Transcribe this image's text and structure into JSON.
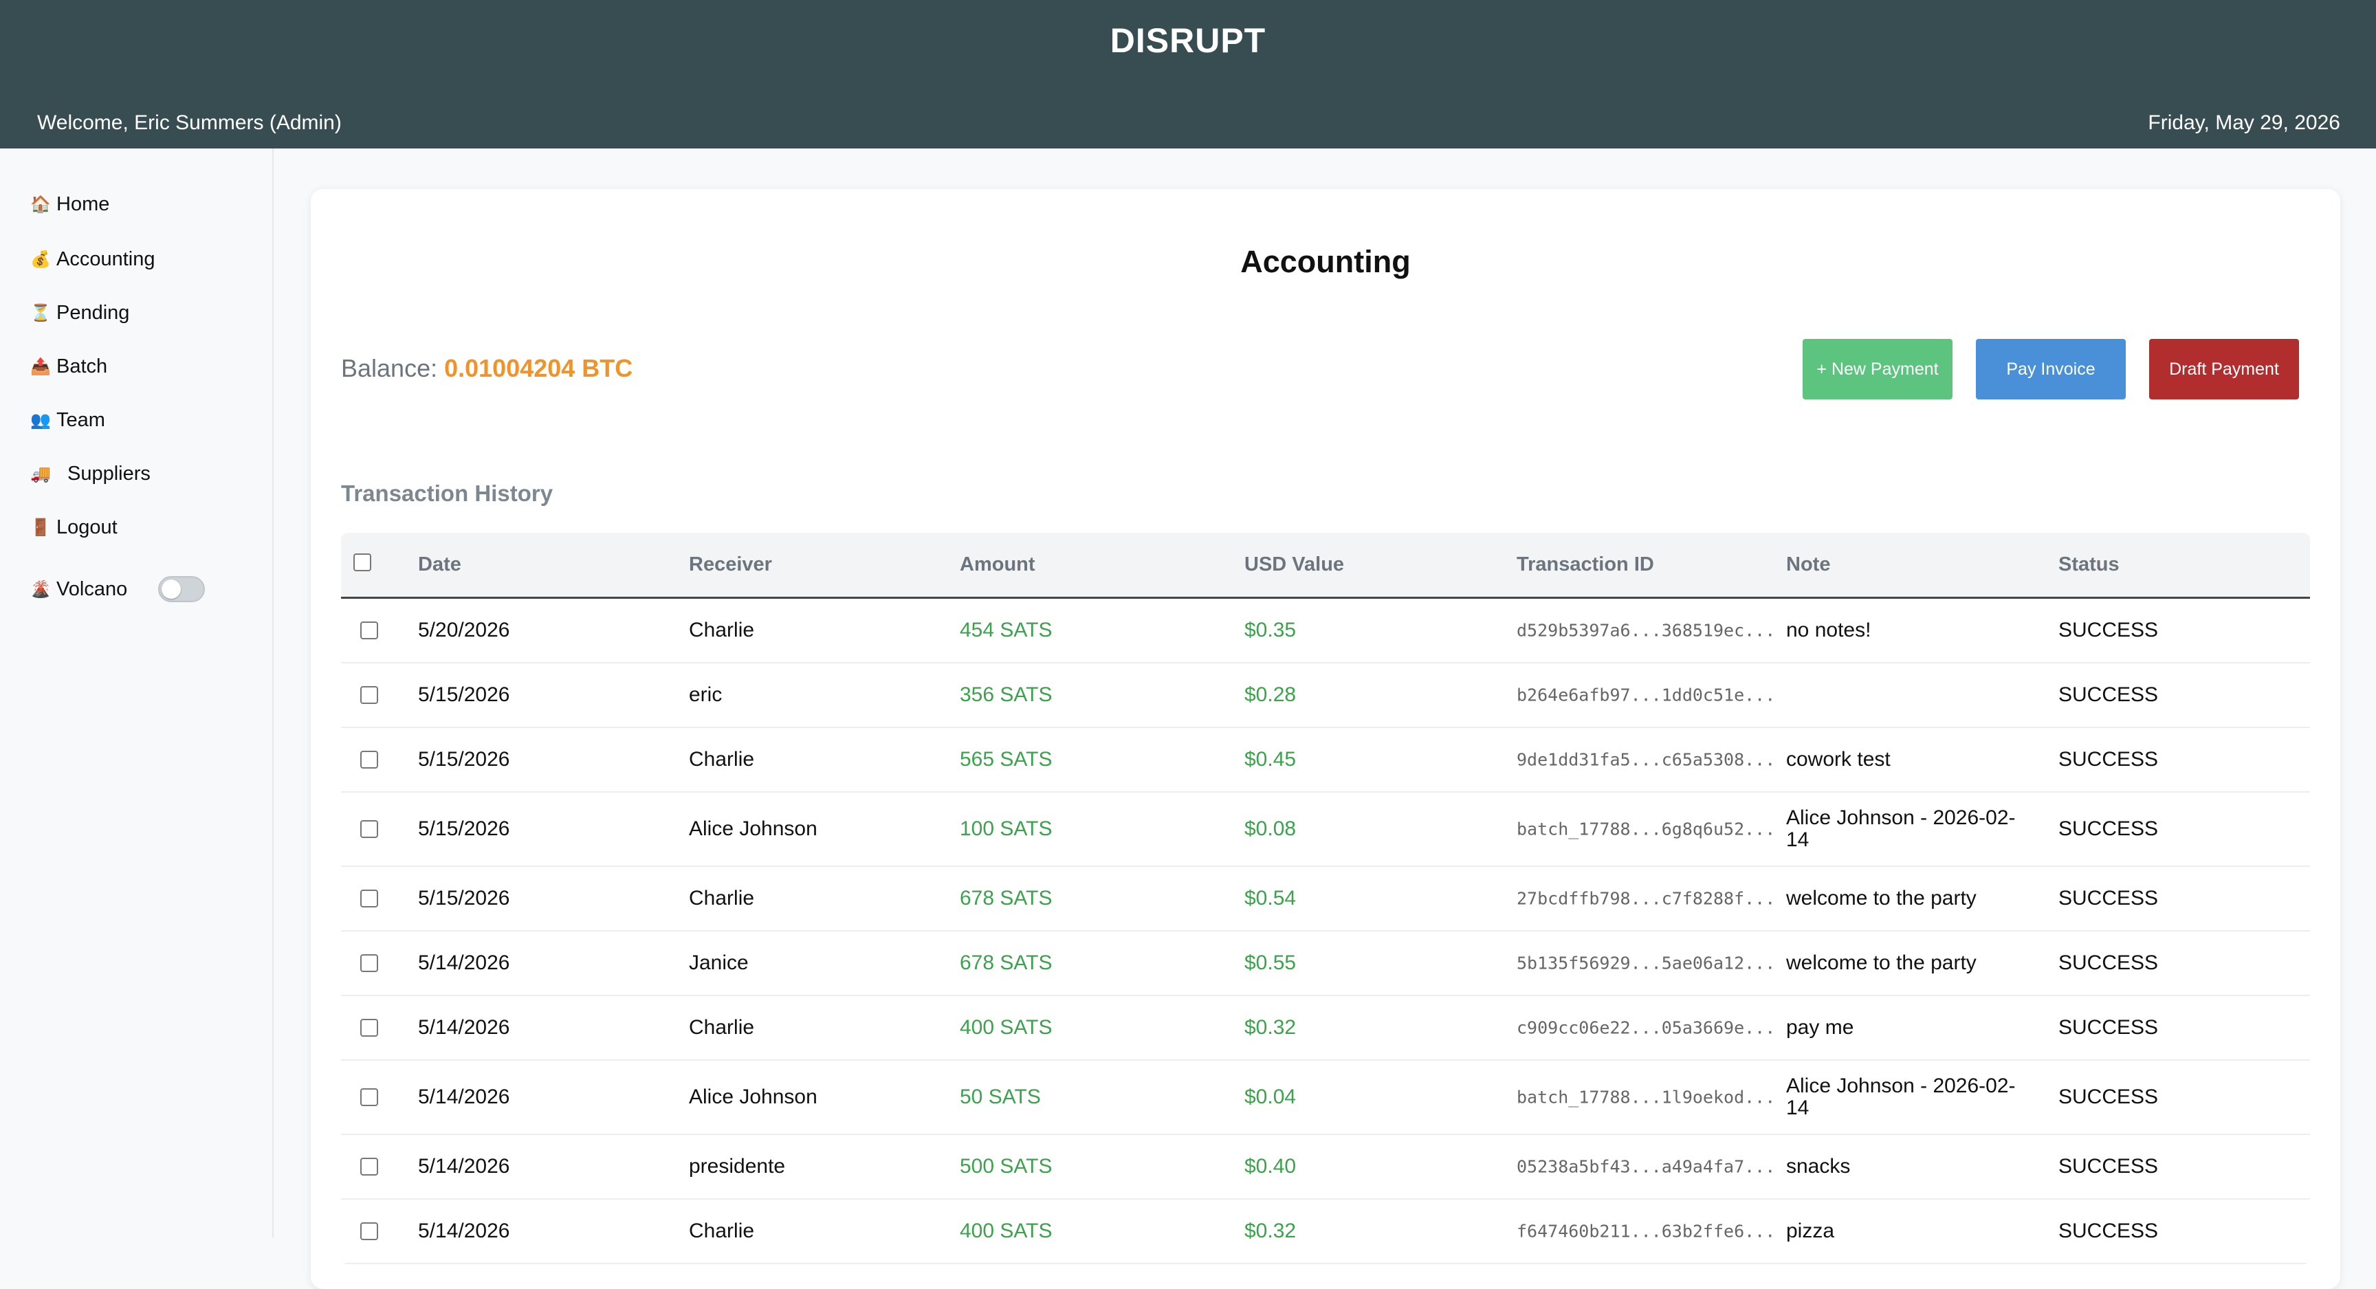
{
  "header": {
    "brand": "DISRUPT",
    "welcome": "Welcome, Eric Summers (Admin)",
    "date": "Friday, May 29, 2026"
  },
  "sidebar": {
    "items": [
      {
        "icon": "🏠",
        "icon_name": "home-icon",
        "label": "Home"
      },
      {
        "icon": "💰",
        "icon_name": "money-bag-icon",
        "label": "Accounting"
      },
      {
        "icon": "⏳",
        "icon_name": "hourglass-icon",
        "label": "Pending"
      },
      {
        "icon": "📤",
        "icon_name": "upload-icon",
        "label": "Batch"
      },
      {
        "icon": "👥",
        "icon_name": "team-icon",
        "label": "Team"
      },
      {
        "icon": "🚚",
        "icon_name": "truck-icon",
        "label": "Suppliers"
      },
      {
        "icon": "🚪",
        "icon_name": "door-icon",
        "label": "Logout"
      }
    ],
    "volcano": {
      "icon": "🌋",
      "icon_name": "volcano-icon",
      "label": "Volcano",
      "toggle_on": false
    }
  },
  "main": {
    "title": "Accounting",
    "balance_label": "Balance: ",
    "balance_value": "0.01004204 BTC",
    "buttons": {
      "new_payment": "+ New Payment",
      "pay_invoice": "Pay Invoice",
      "draft_payment": "Draft Payment"
    },
    "section_title": "Transaction History",
    "columns": [
      "Date",
      "Receiver",
      "Amount",
      "USD Value",
      "Transaction ID",
      "Note",
      "Status"
    ],
    "rows": [
      {
        "date": "5/20/2026",
        "receiver": "Charlie",
        "amount": "454 SATS",
        "usd": "$0.35",
        "txid": "d529b5397a6...368519ec...",
        "note": "no notes!",
        "status": "SUCCESS"
      },
      {
        "date": "5/15/2026",
        "receiver": "eric",
        "amount": "356 SATS",
        "usd": "$0.28",
        "txid": "b264e6afb97...1dd0c51e...",
        "note": "",
        "status": "SUCCESS"
      },
      {
        "date": "5/15/2026",
        "receiver": "Charlie",
        "amount": "565 SATS",
        "usd": "$0.45",
        "txid": "9de1dd31fa5...c65a5308...",
        "note": "cowork test",
        "status": "SUCCESS"
      },
      {
        "date": "5/15/2026",
        "receiver": "Alice Johnson",
        "amount": "100 SATS",
        "usd": "$0.08",
        "txid": "batch_17788...6g8q6u52...",
        "note": "Alice Johnson - 2026-02-14",
        "status": "SUCCESS"
      },
      {
        "date": "5/15/2026",
        "receiver": "Charlie",
        "amount": "678 SATS",
        "usd": "$0.54",
        "txid": "27bcdffb798...c7f8288f...",
        "note": "welcome to the party",
        "status": "SUCCESS"
      },
      {
        "date": "5/14/2026",
        "receiver": "Janice",
        "amount": "678 SATS",
        "usd": "$0.55",
        "txid": "5b135f56929...5ae06a12...",
        "note": "welcome to the party",
        "status": "SUCCESS"
      },
      {
        "date": "5/14/2026",
        "receiver": "Charlie",
        "amount": "400 SATS",
        "usd": "$0.32",
        "txid": "c909cc06e22...05a3669e...",
        "note": "pay me",
        "status": "SUCCESS"
      },
      {
        "date": "5/14/2026",
        "receiver": "Alice Johnson",
        "amount": "50 SATS",
        "usd": "$0.04",
        "txid": "batch_17788...1l9oekod...",
        "note": "Alice Johnson - 2026-02-14",
        "status": "SUCCESS"
      },
      {
        "date": "5/14/2026",
        "receiver": "presidente",
        "amount": "500 SATS",
        "usd": "$0.40",
        "txid": "05238a5bf43...a49a4fa7...",
        "note": "snacks",
        "status": "SUCCESS"
      },
      {
        "date": "5/14/2026",
        "receiver": "Charlie",
        "amount": "400 SATS",
        "usd": "$0.32",
        "txid": "f647460b211...63b2ffe6...",
        "note": "pizza",
        "status": "SUCCESS"
      }
    ]
  },
  "colors": {
    "header_bg": "#384d52",
    "balance_accent": "#f0932b",
    "amount_green": "#3ca24e",
    "new_payment_bg": "#5cc47f",
    "pay_invoice_bg": "#4a90d9",
    "draft_payment_bg": "#b22d2d"
  }
}
